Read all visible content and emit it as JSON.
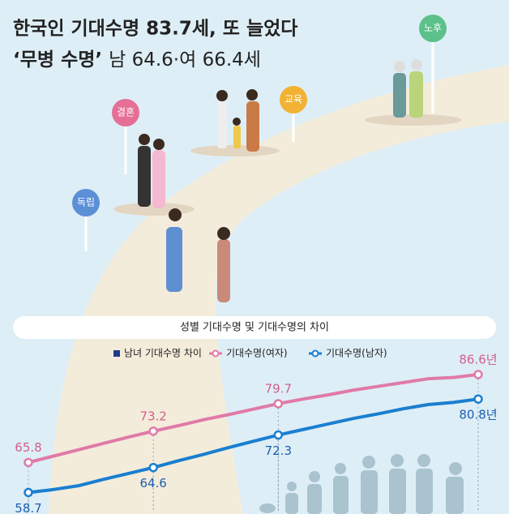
{
  "header": {
    "title": "한국인 기대수명 83.7세, 또 늘었다",
    "subtitle_bold": "‘무병 수명’",
    "subtitle_rest": "남 64.6·여 66.4세"
  },
  "illustration": {
    "signs": [
      "독립",
      "결혼",
      "교육",
      "노후"
    ]
  },
  "chart_data": {
    "type": "line",
    "title": "성별 기대수명 및 기대수명의 차이",
    "categories": [
      null,
      null,
      null,
      null,
      null,
      null,
      null,
      null,
      null,
      null,
      null,
      null,
      null,
      null,
      null,
      null,
      null,
      null,
      null
    ],
    "ylim": [
      54,
      91
    ],
    "series": [
      {
        "name": "남녀 기대수명 차이",
        "color": "#1f3a8a",
        "values": [
          null,
          null,
          null,
          null,
          null,
          null,
          null,
          null,
          null,
          null,
          null,
          null,
          null,
          null,
          null,
          null,
          null,
          null,
          null
        ]
      },
      {
        "name": "기대수명(여자)",
        "color": "#e07aa8",
        "values": [
          65.8,
          67.3,
          68.8,
          70.3,
          71.8,
          73.2,
          74.5,
          75.9,
          77.1,
          78.4,
          79.7,
          80.8,
          81.8,
          82.9,
          83.8,
          84.7,
          85.6,
          85.9,
          86.6
        ],
        "value_labels": [
          "65.8",
          null,
          null,
          null,
          null,
          "73.2",
          null,
          null,
          null,
          null,
          "79.7",
          null,
          null,
          null,
          null,
          null,
          null,
          null,
          "86.6년"
        ]
      },
      {
        "name": "기대수명(남자)",
        "color": "#1a7fd0",
        "values": [
          58.7,
          59.4,
          60.3,
          61.8,
          63.2,
          64.6,
          66.2,
          67.7,
          69.3,
          70.8,
          72.3,
          73.6,
          74.9,
          76.2,
          77.3,
          78.5,
          79.5,
          80.0,
          80.8
        ],
        "value_labels": [
          "58.7",
          null,
          null,
          null,
          null,
          "64.6",
          null,
          null,
          null,
          null,
          "72.3",
          null,
          null,
          null,
          null,
          null,
          null,
          null,
          "80.8년"
        ]
      }
    ]
  }
}
